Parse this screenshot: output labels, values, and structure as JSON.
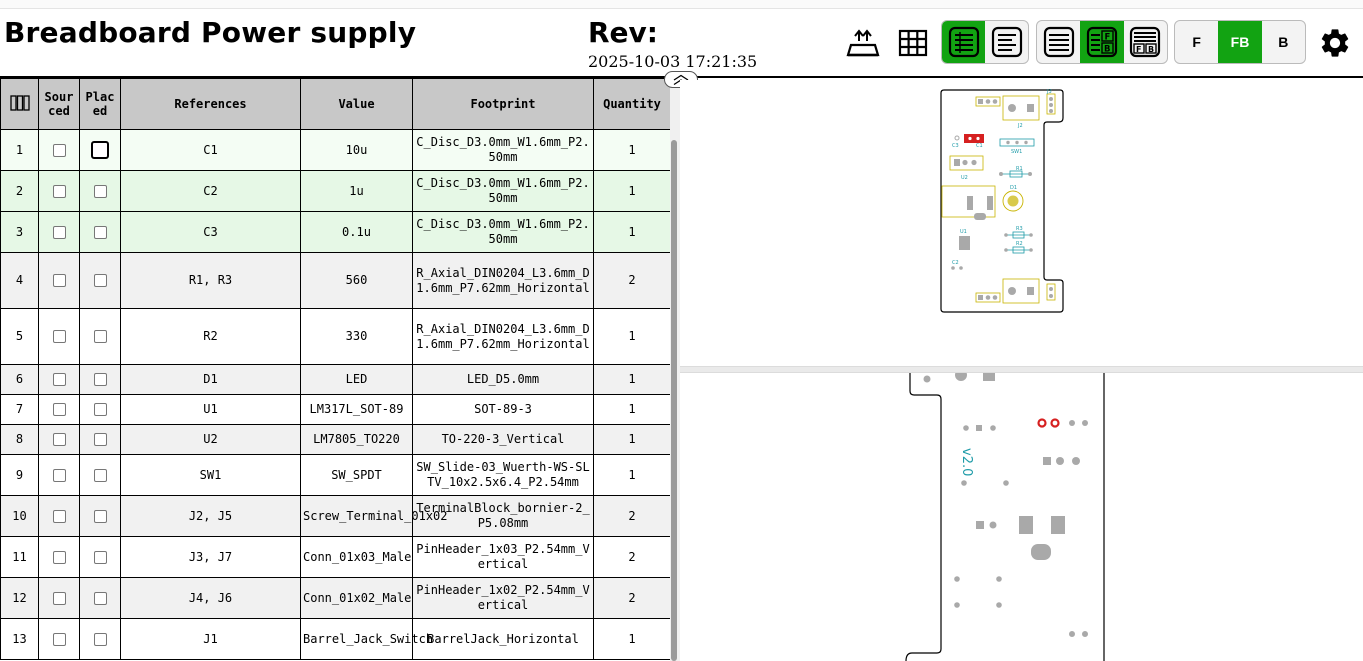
{
  "header": {
    "title": "Breadboard Power supply",
    "rev_label": "Rev:",
    "rev_date": "2025-10-03 17:21:35"
  },
  "toolbar": {
    "icons": [
      "fullscreen-toggle-icon",
      "grid-icon",
      "bom-only-icon",
      "bom-left-icon",
      "bom-top-icon",
      "bom-lr-icon",
      "bom-tb-icon",
      "settings-icon"
    ],
    "layout_buttons": {
      "f": "F",
      "fb": "FB",
      "b": "B"
    },
    "active_layer": "FB",
    "accent_color": "#12a312"
  },
  "bom": {
    "columns": {
      "index": "",
      "sourced": "Sourced",
      "placed": "Placed",
      "references": "References",
      "value": "Value",
      "footprint": "Footprint",
      "quantity": "Quantity"
    },
    "rows": [
      {
        "n": "1",
        "refs": "C1",
        "value": "10u",
        "footprint": "C_Disc_D3.0mm_W1.6mm_P2.50mm",
        "qty": "1"
      },
      {
        "n": "2",
        "refs": "C2",
        "value": "1u",
        "footprint": "C_Disc_D3.0mm_W1.6mm_P2.50mm",
        "qty": "1"
      },
      {
        "n": "3",
        "refs": "C3",
        "value": "0.1u",
        "footprint": "C_Disc_D3.0mm_W1.6mm_P2.50mm",
        "qty": "1"
      },
      {
        "n": "4",
        "refs": "R1, R3",
        "value": "560",
        "footprint": "R_Axial_DIN0204_L3.6mm_D1.6mm_P7.62mm_Horizontal",
        "qty": "2"
      },
      {
        "n": "5",
        "refs": "R2",
        "value": "330",
        "footprint": "R_Axial_DIN0204_L3.6mm_D1.6mm_P7.62mm_Horizontal",
        "qty": "1"
      },
      {
        "n": "6",
        "refs": "D1",
        "value": "LED",
        "footprint": "LED_D5.0mm",
        "qty": "1"
      },
      {
        "n": "7",
        "refs": "U1",
        "value": "LM317L_SOT-89",
        "footprint": "SOT-89-3",
        "qty": "1"
      },
      {
        "n": "8",
        "refs": "U2",
        "value": "LM7805_TO220",
        "footprint": "TO-220-3_Vertical",
        "qty": "1"
      },
      {
        "n": "9",
        "refs": "SW1",
        "value": "SW_SPDT",
        "footprint": "SW_Slide-03_Wuerth-WS-SLTV_10x2.5x6.4_P2.54mm",
        "qty": "1"
      },
      {
        "n": "10",
        "refs": "J2, J5",
        "value": "Screw_Terminal_01x02",
        "footprint": "TerminalBlock_bornier-2_P5.08mm",
        "qty": "2"
      },
      {
        "n": "11",
        "refs": "J3, J7",
        "value": "Conn_01x03_Male",
        "footprint": "PinHeader_1x03_P2.54mm_Vertical",
        "qty": "2"
      },
      {
        "n": "12",
        "refs": "J4, J6",
        "value": "Conn_01x02_Male",
        "footprint": "PinHeader_1x02_P2.54mm_Vertical",
        "qty": "2"
      },
      {
        "n": "13",
        "refs": "J1",
        "value": "Barrel_Jack_Switch",
        "footprint": "BarrelJack_Horizontal",
        "qty": "1"
      }
    ]
  },
  "pcb": {
    "back_silk_text": "v2.0",
    "labels": {
      "j3": "J3",
      "j2": "J2",
      "c1": "C1",
      "c3": "C3",
      "sw1": "SW1",
      "u2": "U2",
      "r1": "R1",
      "d1": "D1",
      "u1": "U1",
      "r3": "R3",
      "r2": "R2",
      "c2": "C2"
    },
    "colors": {
      "outline": "#000000",
      "silk": "#c8b400",
      "fab": "#1e9ba8",
      "pad": "#a9a9a9",
      "highlight": "#d62020"
    }
  }
}
